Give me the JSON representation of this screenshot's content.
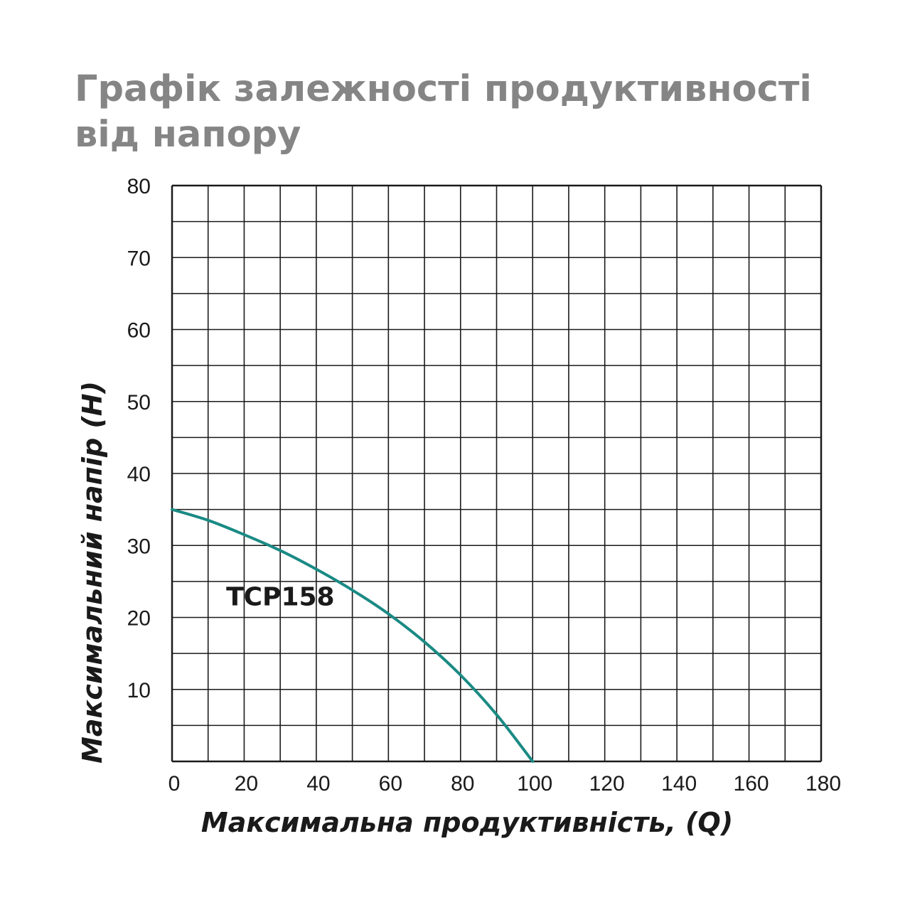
{
  "chart_data": {
    "type": "line",
    "title": "Графік залежності продуктивності від напору",
    "xlabel": "Максимальна продуктивність, (Q)",
    "ylabel": "Максимальний напір (H)",
    "xlim": [
      0,
      180
    ],
    "ylim": [
      0,
      80
    ],
    "x_ticks": [
      0,
      20,
      40,
      60,
      80,
      100,
      120,
      140,
      160,
      180
    ],
    "y_ticks": [
      10,
      20,
      30,
      40,
      50,
      60,
      70,
      80
    ],
    "x_grid_step": 10,
    "y_grid_step": 5,
    "grid": true,
    "series": [
      {
        "name": "TCP158",
        "color": "#1a8a84",
        "x": [
          0,
          10,
          20,
          30,
          40,
          50,
          60,
          70,
          80,
          90,
          100
        ],
        "y": [
          35,
          33.5,
          31.5,
          29.3,
          26.7,
          23.8,
          20.5,
          16.6,
          12.0,
          6.5,
          0
        ]
      }
    ]
  },
  "colors": {
    "title": "#858585",
    "grid": "#1a1a1a",
    "curve": "#1a8a84"
  }
}
